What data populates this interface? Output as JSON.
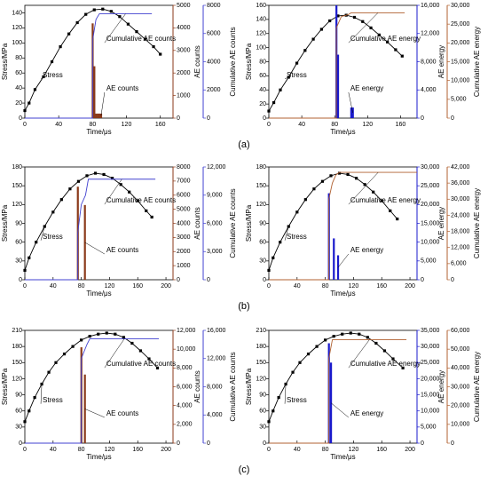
{
  "panel_labels": [
    "(a)",
    "(b)",
    "(c)"
  ],
  "chart_data": [
    {
      "type": "combo",
      "xlabel": "Time/μs",
      "ylabel": "Stress/MPa",
      "y2label": "AE counts",
      "y3label": "Cumulative  AE counts",
      "xlim": [
        0,
        175
      ],
      "xticks": [
        0,
        40,
        80,
        120,
        160
      ],
      "ylim": [
        0,
        150
      ],
      "yticks": [
        0,
        20,
        40,
        60,
        80,
        100,
        120,
        140
      ],
      "y2lim": [
        0,
        5000
      ],
      "y2ticks": [
        0,
        1000,
        2000,
        3000,
        4000,
        5000
      ],
      "y3lim": [
        0,
        8000
      ],
      "y3ticks": [
        0,
        2000,
        4000,
        6000,
        8000
      ],
      "series": [
        {
          "name": "Stress",
          "type": "line",
          "axis": "y",
          "color": "#000000",
          "x": [
            0,
            5,
            12,
            22,
            32,
            42,
            52,
            62,
            72,
            82,
            92,
            102,
            112,
            122,
            132,
            142,
            152,
            160
          ],
          "values": [
            10,
            20,
            38,
            55,
            75,
            95,
            112,
            127,
            138,
            144,
            145,
            142,
            135,
            125,
            115,
            105,
            95,
            85
          ]
        },
        {
          "name": "AE counts",
          "type": "bar",
          "axis": "y2",
          "color": "#8b3a1a",
          "x": [
            80,
            82,
            84,
            86,
            88,
            90
          ],
          "values": [
            4200,
            2300,
            200,
            200,
            200,
            200
          ]
        },
        {
          "name": "Cumulative AE counts",
          "type": "step",
          "axis": "y3",
          "color": "#4040d0",
          "x": [
            0,
            80,
            80,
            84,
            88,
            150
          ],
          "values": [
            0,
            0,
            5500,
            7000,
            7400,
            7400
          ]
        }
      ]
    },
    {
      "type": "combo",
      "xlabel": "Time/μs",
      "ylabel": "Stress/MPa",
      "y2label": "AE energy",
      "y3label": "Cumulative  AE energy",
      "xlim": [
        0,
        180
      ],
      "xticks": [
        0,
        40,
        80,
        120,
        160
      ],
      "ylim": [
        0,
        160
      ],
      "yticks": [
        0,
        20,
        40,
        60,
        80,
        100,
        120,
        140,
        160
      ],
      "y2lim": [
        0,
        16000
      ],
      "y2ticks": [
        0,
        {
          "value": 4000,
          "label": "4,000"
        },
        {
          "value": 8000,
          "label": "8,000"
        },
        {
          "value": 12000,
          "label": "12,000"
        },
        {
          "value": 16000,
          "label": "16,000"
        }
      ],
      "y3lim": [
        0,
        30000
      ],
      "y3ticks": [
        0,
        {
          "value": 5000,
          "label": "5,000"
        },
        {
          "value": 10000,
          "label": "10,000"
        },
        {
          "value": 15000,
          "label": "15,000"
        },
        {
          "value": 20000,
          "label": "20,000"
        },
        {
          "value": 25000,
          "label": "25,000"
        },
        {
          "value": 30000,
          "label": "30,000"
        }
      ],
      "series": [
        {
          "name": "Stress",
          "type": "line",
          "axis": "y",
          "color": "#000000",
          "x": [
            0,
            6,
            14,
            24,
            34,
            44,
            54,
            64,
            74,
            84,
            94,
            104,
            114,
            124,
            134,
            144,
            154,
            162
          ],
          "values": [
            10,
            22,
            40,
            58,
            78,
            96,
            112,
            126,
            138,
            145,
            146,
            143,
            137,
            128,
            118,
            108,
            97,
            88
          ]
        },
        {
          "name": "AE energy",
          "type": "bar",
          "axis": "y2",
          "color": "#1a1acc",
          "x": [
            82,
            84,
            100,
            102
          ],
          "values": [
            16000,
            9000,
            1500,
            1500
          ]
        },
        {
          "name": "Cumulative AE energy",
          "type": "step",
          "axis": "y3",
          "color": "#b06030",
          "x": [
            0,
            82,
            82,
            88,
            96,
            100,
            165
          ],
          "values": [
            0,
            0,
            24000,
            27000,
            27500,
            28000,
            28000
          ]
        }
      ]
    },
    {
      "type": "combo",
      "xlabel": "Time/μs",
      "ylabel": "Stress/MPa",
      "y2label": "AE counts",
      "y3label": "Cumulative  AE counts",
      "xlim": [
        0,
        210
      ],
      "xticks": [
        0,
        40,
        80,
        120,
        160,
        200
      ],
      "ylim": [
        0,
        180
      ],
      "yticks": [
        0,
        30,
        60,
        90,
        120,
        150,
        180
      ],
      "y2lim": [
        0,
        8000
      ],
      "y2ticks": [
        0,
        1000,
        2000,
        3000,
        4000,
        5000,
        6000,
        7000,
        8000
      ],
      "y3lim": [
        0,
        12000
      ],
      "y3ticks": [
        0,
        {
          "value": 3000,
          "label": "3,000"
        },
        {
          "value": 6000,
          "label": "6,000"
        },
        {
          "value": 9000,
          "label": "9,000"
        },
        {
          "value": 12000,
          "label": "12,000"
        }
      ],
      "series": [
        {
          "name": "Stress",
          "type": "line",
          "axis": "y",
          "color": "#000000",
          "x": [
            0,
            6,
            16,
            28,
            40,
            52,
            64,
            76,
            88,
            100,
            112,
            124,
            136,
            148,
            160,
            172,
            180
          ],
          "values": [
            15,
            35,
            60,
            85,
            108,
            128,
            145,
            157,
            166,
            170,
            168,
            162,
            152,
            140,
            126,
            110,
            100
          ]
        },
        {
          "name": "AE counts",
          "type": "bar",
          "axis": "y2",
          "color": "#8b3a1a",
          "x": [
            75,
            85
          ],
          "values": [
            6600,
            5300
          ]
        },
        {
          "name": "Cumulative AE counts",
          "type": "step",
          "axis": "y3",
          "color": "#4040d0",
          "x": [
            0,
            75,
            75,
            80,
            86,
            90,
            185
          ],
          "values": [
            0,
            0,
            5000,
            8000,
            9000,
            10700,
            10700
          ]
        }
      ]
    },
    {
      "type": "combo",
      "xlabel": "Time/μs",
      "ylabel": "Stress/MPa",
      "y2label": "AE energy",
      "y3label": "Cumulative  AE energy",
      "xlim": [
        0,
        210
      ],
      "xticks": [
        0,
        40,
        80,
        120,
        160,
        200
      ],
      "ylim": [
        0,
        180
      ],
      "yticks": [
        0,
        30,
        60,
        90,
        120,
        150,
        180
      ],
      "y2lim": [
        0,
        30000
      ],
      "y2ticks": [
        0,
        {
          "value": 5000,
          "label": "5,000"
        },
        {
          "value": 10000,
          "label": "10,000"
        },
        {
          "value": 15000,
          "label": "15,000"
        },
        {
          "value": 20000,
          "label": "20,000"
        },
        {
          "value": 25000,
          "label": "25,000"
        },
        {
          "value": 30000,
          "label": "30,000"
        }
      ],
      "y3lim": [
        0,
        42000
      ],
      "y3ticks": [
        0,
        {
          "value": 6000,
          "label": "6,000"
        },
        {
          "value": 12000,
          "label": "12,000"
        },
        {
          "value": 18000,
          "label": "18,000"
        },
        {
          "value": 24000,
          "label": "24,000"
        },
        {
          "value": 30000,
          "label": "30,000"
        },
        {
          "value": 36000,
          "label": "36,000"
        },
        {
          "value": 42000,
          "label": "42,000"
        }
      ],
      "series": [
        {
          "name": "Stress",
          "type": "line",
          "axis": "y",
          "color": "#000000",
          "x": [
            0,
            6,
            16,
            28,
            40,
            52,
            64,
            76,
            88,
            100,
            112,
            124,
            136,
            148,
            160,
            172,
            182
          ],
          "values": [
            15,
            35,
            60,
            85,
            108,
            128,
            145,
            157,
            166,
            170,
            168,
            162,
            152,
            140,
            126,
            110,
            97
          ]
        },
        {
          "name": "AE energy",
          "type": "bar",
          "axis": "y2",
          "color": "#1a1acc",
          "x": [
            85,
            92,
            98
          ],
          "values": [
            23000,
            11000,
            6500
          ]
        },
        {
          "name": "Cumulative AE energy",
          "type": "step",
          "axis": "y3",
          "color": "#b06030",
          "x": [
            0,
            85,
            85,
            90,
            95,
            100,
            210
          ],
          "values": [
            0,
            0,
            30000,
            36000,
            39000,
            40000,
            40000
          ]
        }
      ]
    },
    {
      "type": "combo",
      "xlabel": "Time/μs",
      "ylabel": "Stress/MPa",
      "y2label": "AE counts",
      "y3label": "Cumulative  AE counts",
      "xlim": [
        0,
        210
      ],
      "xticks": [
        0,
        40,
        80,
        120,
        160,
        200
      ],
      "ylim": [
        0,
        210
      ],
      "yticks": [
        0,
        30,
        60,
        90,
        120,
        150,
        180,
        210
      ],
      "y2lim": [
        0,
        12000
      ],
      "y2ticks": [
        0,
        {
          "value": 2000,
          "label": "2,000"
        },
        {
          "value": 4000,
          "label": "4,000"
        },
        {
          "value": 6000,
          "label": "6,000"
        },
        {
          "value": 8000,
          "label": "8,000"
        },
        {
          "value": 10000,
          "label": "10,000"
        },
        {
          "value": 12000,
          "label": "12,000"
        }
      ],
      "y3lim": [
        0,
        16000
      ],
      "y3ticks": [
        0,
        {
          "value": 4000,
          "label": "4,000"
        },
        {
          "value": 8000,
          "label": "8,000"
        },
        {
          "value": 12000,
          "label": "12,000"
        },
        {
          "value": 16000,
          "label": "16,000"
        }
      ],
      "series": [
        {
          "name": "Stress",
          "type": "line",
          "axis": "y",
          "color": "#000000",
          "x": [
            0,
            6,
            14,
            24,
            34,
            44,
            56,
            68,
            80,
            92,
            104,
            116,
            128,
            140,
            152,
            164,
            176,
            188
          ],
          "values": [
            40,
            60,
            85,
            110,
            132,
            150,
            166,
            180,
            192,
            199,
            203,
            205,
            203,
            197,
            186,
            172,
            157,
            140
          ]
        },
        {
          "name": "AE counts",
          "type": "bar",
          "axis": "y2",
          "color": "#8b3a1a",
          "x": [
            80,
            85
          ],
          "values": [
            10200,
            7300
          ]
        },
        {
          "name": "Cumulative AE counts",
          "type": "step",
          "axis": "y3",
          "color": "#4040d0",
          "x": [
            0,
            80,
            80,
            88,
            92,
            190
          ],
          "values": [
            0,
            0,
            12000,
            14000,
            14800,
            14800
          ]
        }
      ]
    },
    {
      "type": "combo",
      "xlabel": "Time/μs",
      "ylabel": "Stress/MPa",
      "y2label": "AE energy",
      "y3label": "Cumulative  AE energy",
      "xlim": [
        0,
        210
      ],
      "xticks": [
        0,
        40,
        80,
        120,
        160,
        200
      ],
      "ylim": [
        0,
        210
      ],
      "yticks": [
        0,
        30,
        60,
        90,
        120,
        150,
        180,
        210
      ],
      "y2lim": [
        0,
        35000
      ],
      "y2ticks": [
        0,
        {
          "value": 5000,
          "label": "5,000"
        },
        {
          "value": 10000,
          "label": "10,000"
        },
        {
          "value": 15000,
          "label": "15,000"
        },
        {
          "value": 20000,
          "label": "20,000"
        },
        {
          "value": 25000,
          "label": "25,000"
        },
        {
          "value": 30000,
          "label": "30,000"
        },
        {
          "value": 35000,
          "label": "35,000"
        }
      ],
      "y3lim": [
        0,
        60000
      ],
      "y3ticks": [
        0,
        {
          "value": 10000,
          "label": "10,000"
        },
        {
          "value": 20000,
          "label": "20,000"
        },
        {
          "value": 30000,
          "label": "30,000"
        },
        {
          "value": 40000,
          "label": "40,000"
        },
        {
          "value": 50000,
          "label": "50,000"
        },
        {
          "value": 60000,
          "label": "60,000"
        }
      ],
      "series": [
        {
          "name": "Stress",
          "type": "line",
          "axis": "y",
          "color": "#000000",
          "x": [
            0,
            6,
            14,
            24,
            34,
            44,
            56,
            68,
            80,
            92,
            104,
            116,
            128,
            140,
            152,
            164,
            176,
            190
          ],
          "values": [
            40,
            60,
            85,
            110,
            132,
            150,
            166,
            180,
            192,
            199,
            203,
            205,
            203,
            197,
            186,
            172,
            157,
            140
          ]
        },
        {
          "name": "AE energy",
          "type": "bar",
          "axis": "y2",
          "color": "#1a1acc",
          "x": [
            85,
            88
          ],
          "values": [
            31000,
            25000
          ]
        },
        {
          "name": "Cumulative AE energy",
          "type": "step",
          "axis": "y3",
          "color": "#b06030",
          "x": [
            0,
            85,
            85,
            90,
            195
          ],
          "values": [
            0,
            0,
            45000,
            55000,
            55000
          ]
        }
      ]
    }
  ]
}
